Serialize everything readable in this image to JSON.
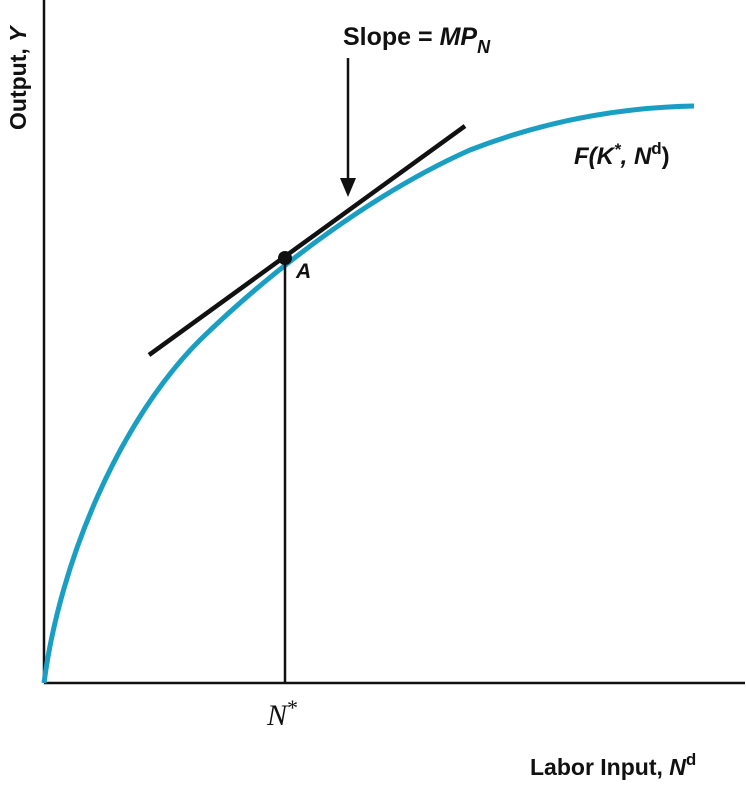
{
  "axes": {
    "y_label_prefix": "Output, ",
    "y_label_var": "Y",
    "x_label_prefix": "Labor Input, ",
    "x_label_var": "N",
    "x_label_sup": "d"
  },
  "curve": {
    "label_pre": "F(K",
    "label_star": "*",
    "label_mid": ", N",
    "label_sup": "d",
    "label_post": ")",
    "color": "#1a9fc3"
  },
  "tangent": {
    "label_prefix": "Slope = ",
    "label_mp": "MP",
    "label_sub": "N",
    "color": "#111111"
  },
  "point": {
    "label": "A"
  },
  "tick": {
    "label_var": "N",
    "label_star": "*"
  }
}
